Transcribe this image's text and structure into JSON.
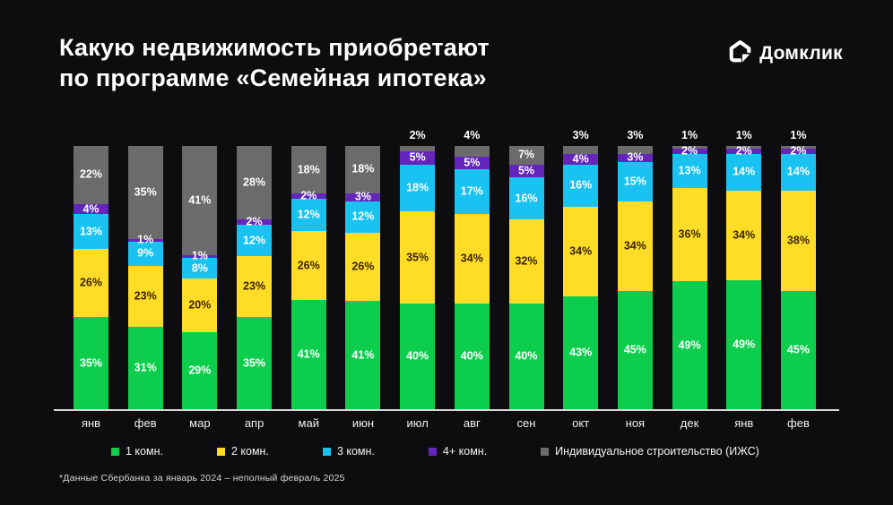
{
  "header": {
    "title_line1": "Какую недвижимость приобретают",
    "title_line2": "по программе «Семейная ипотека»",
    "brand": "Домклик"
  },
  "chart_data": {
    "type": "bar",
    "variant": "stacked-100-percent",
    "title": "Какую недвижимость приобретают по программе «Семейная ипотека»",
    "categories": [
      "янв",
      "фев",
      "мар",
      "апр",
      "май",
      "июн",
      "июл",
      "авг",
      "сен",
      "окт",
      "ноя",
      "дек",
      "янв",
      "фев"
    ],
    "series": [
      {
        "name": "1 комн.",
        "color": "#0DCE4C",
        "label_color": "#FFFFFF",
        "values": [
          35,
          31,
          29,
          35,
          41,
          41,
          40,
          40,
          40,
          43,
          45,
          49,
          49,
          45
        ]
      },
      {
        "name": "2 комн.",
        "color": "#FFDD26",
        "label_color": "#3A2300",
        "values": [
          26,
          23,
          20,
          23,
          26,
          26,
          35,
          34,
          32,
          34,
          34,
          36,
          34,
          38
        ]
      },
      {
        "name": "3 комн.",
        "color": "#19C2F0",
        "label_color": "#FFFFFF",
        "values": [
          13,
          9,
          8,
          12,
          12,
          12,
          18,
          17,
          16,
          16,
          15,
          13,
          14,
          14
        ]
      },
      {
        "name": "4+ комн.",
        "color": "#6325BA",
        "label_color": "#FFFFFF",
        "values": [
          4,
          1,
          1,
          2,
          2,
          3,
          5,
          5,
          5,
          4,
          3,
          2,
          2,
          2
        ]
      },
      {
        "name": "Индивидуальное строительство (ИЖС)",
        "color": "#6B6B6B",
        "label_color": "#FFFFFF",
        "values": [
          22,
          35,
          41,
          28,
          18,
          18,
          2,
          4,
          7,
          3,
          3,
          1,
          1,
          1
        ]
      }
    ],
    "unit": "%",
    "legend_position": "bottom",
    "grid": false,
    "outside_label_threshold": 6
  },
  "footnote": "*Данные Сбербанка за январь 2024 – неполный февраль 2025"
}
